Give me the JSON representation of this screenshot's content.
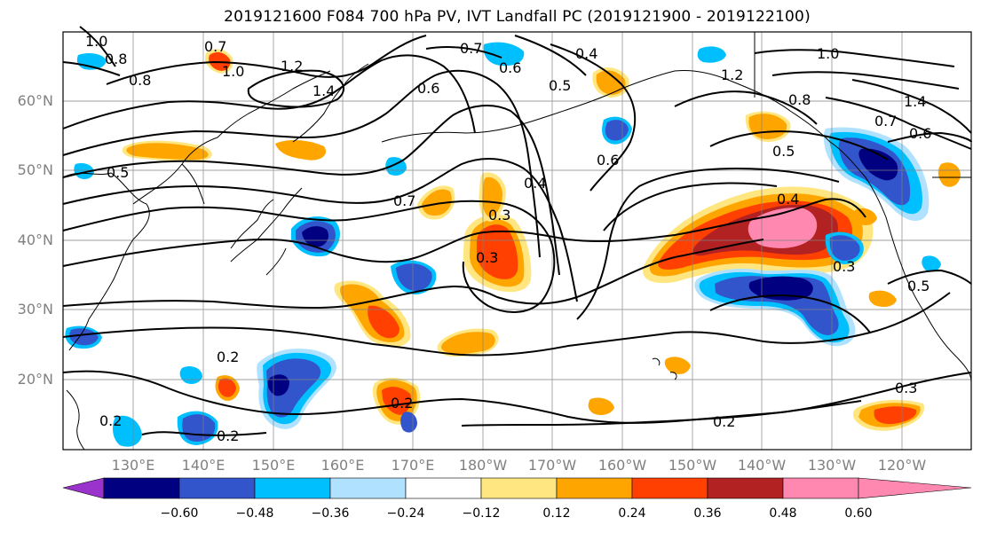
{
  "title": "2019121600 F084 700 hPa PV, IVT Landfall PC (2019121900 - 2019122100)",
  "lat_labels": [
    "60°N",
    "50°N",
    "40°N",
    "30°N",
    "20°N"
  ],
  "lon_labels": [
    "130°E",
    "140°E",
    "150°E",
    "160°E",
    "170°E",
    "180°W",
    "170°W",
    "160°W",
    "150°W",
    "140°W",
    "130°W",
    "120°W"
  ],
  "contour_labels": [
    "1.0",
    "0.8",
    "0.7",
    "1.0",
    "0.8",
    "1.2",
    "1.4",
    "0.5",
    "0.7",
    "0.6",
    "0.4",
    "0.5",
    "1.0",
    "1.2",
    "0.8",
    "0.6",
    "0.7",
    "1.4",
    "0.6",
    "0.7",
    "0.6",
    "0.4",
    "0.3",
    "0.3",
    "0.4",
    "0.5",
    "0.3",
    "0.5",
    "0.2",
    "0.2",
    "0.2",
    "0.2",
    "0.2",
    "0.3"
  ],
  "colorbar": {
    "ticks": [
      "−0.60",
      "−0.48",
      "−0.36",
      "−0.24",
      "−0.12",
      "0.12",
      "0.24",
      "0.36",
      "0.48",
      "0.60"
    ],
    "colors": [
      "#9933cc",
      "#000080",
      "#3355cc",
      "#00bfff",
      "#b0e2ff",
      "#ffffff",
      "#ffe680",
      "#ffa500",
      "#ff4000",
      "#b22222",
      "#ff88b0"
    ]
  },
  "map_colors": {
    "neg_dark": "#000080",
    "neg_mid": "#3355cc",
    "neg_light": "#00bfff",
    "neg_pale": "#b0e2ff",
    "pos_pale": "#ffe680",
    "pos_light": "#ffa500",
    "pos_mid": "#ff4000",
    "pos_dark": "#b22222",
    "pos_max": "#ff88b0"
  }
}
